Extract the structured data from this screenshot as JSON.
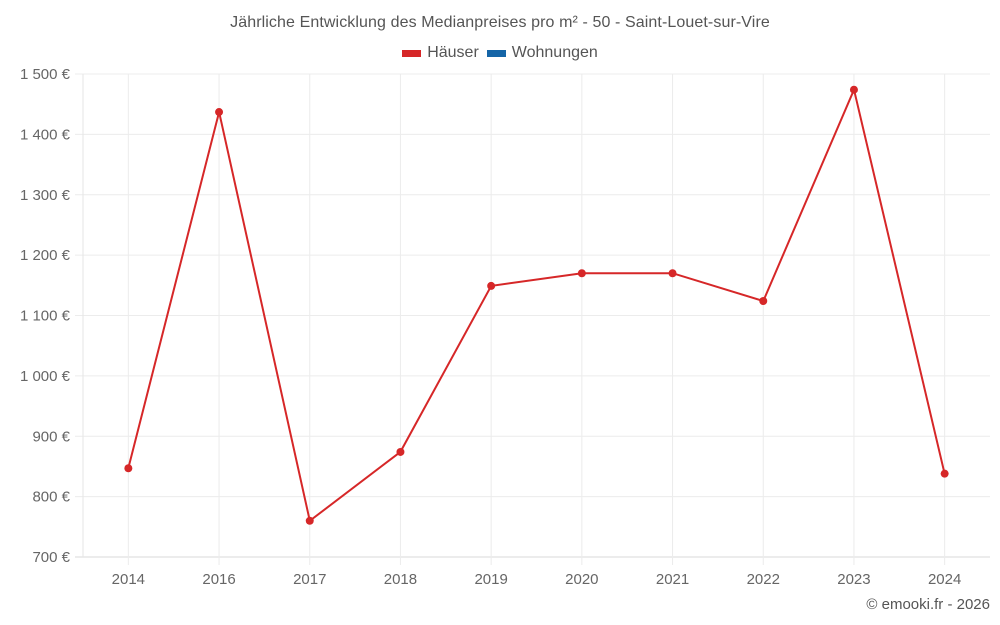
{
  "chart_data": {
    "type": "line",
    "title": "Jährliche Entwicklung des Medianpreises pro m² - 50 - Saint-Louet-sur-Vire",
    "xlabel": "",
    "ylabel": "",
    "categories": [
      "2014",
      "2016",
      "2017",
      "2018",
      "2019",
      "2020",
      "2021",
      "2022",
      "2023",
      "2024"
    ],
    "series": [
      {
        "name": "Häuser",
        "color": "#d62728",
        "values": [
          847,
          1437,
          760,
          874,
          1149,
          1170,
          1170,
          1124,
          1474,
          838
        ]
      },
      {
        "name": "Wohnungen",
        "color": "#1565a7",
        "values": []
      }
    ],
    "ylim": [
      700,
      1500
    ],
    "yticks": [
      700,
      800,
      900,
      1000,
      1100,
      1200,
      1300,
      1400,
      1500
    ],
    "ytick_labels": [
      "700 €",
      "800 €",
      "900 €",
      "1 000 €",
      "1 100 €",
      "1 200 €",
      "1 300 €",
      "1 400 €",
      "1 500 €"
    ],
    "grid": true,
    "legend_position": "top"
  },
  "legend": [
    {
      "label": "Häuser",
      "color": "#d62728"
    },
    {
      "label": "Wohnungen",
      "color": "#1565a7"
    }
  ],
  "credit": "© emooki.fr - 2026"
}
